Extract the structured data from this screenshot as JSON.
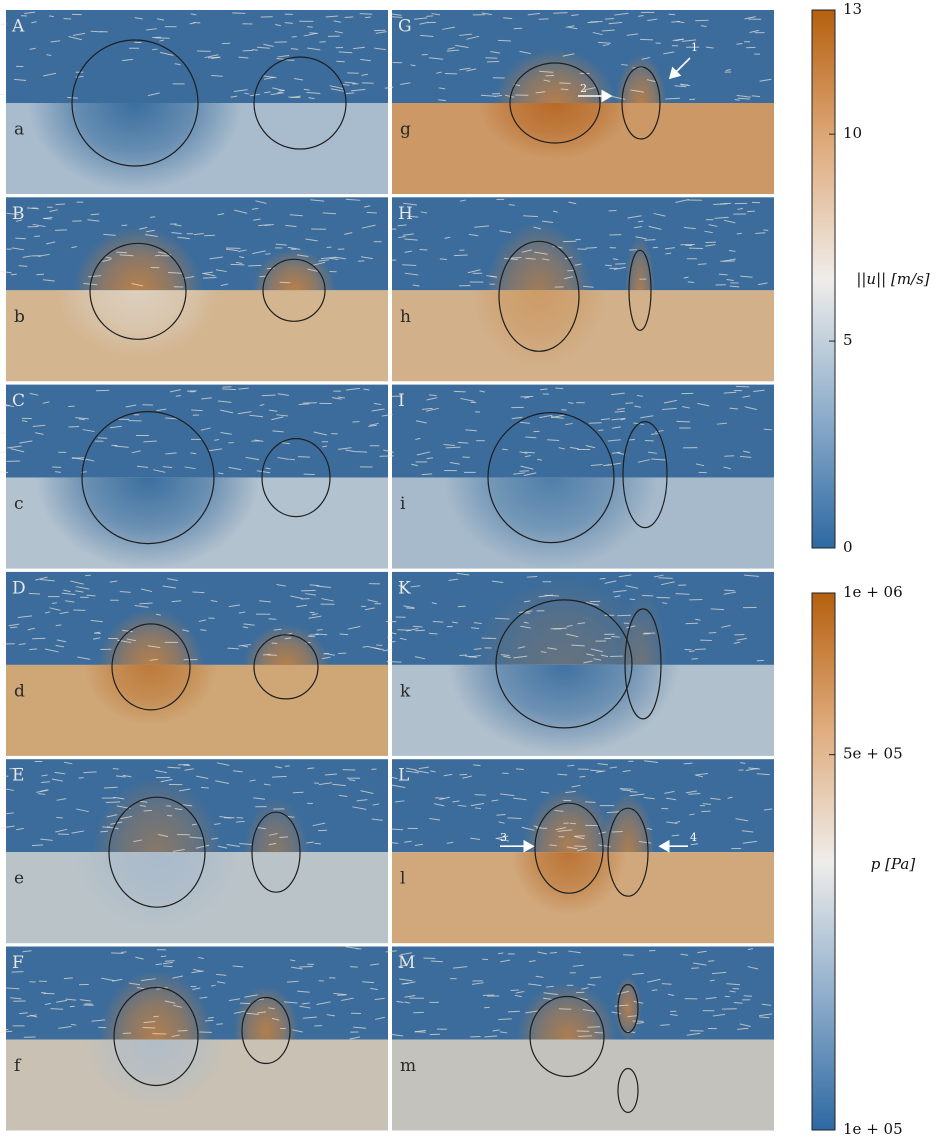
{
  "panels": [
    {
      "upper_label": "A",
      "lower_label": "a"
    },
    {
      "upper_label": "B",
      "lower_label": "b"
    },
    {
      "upper_label": "C",
      "lower_label": "c"
    },
    {
      "upper_label": "D",
      "lower_label": "d"
    },
    {
      "upper_label": "E",
      "lower_label": "e"
    },
    {
      "upper_label": "F",
      "lower_label": "f"
    },
    {
      "upper_label": "G",
      "lower_label": "g"
    },
    {
      "upper_label": "H",
      "lower_label": "h"
    },
    {
      "upper_label": "I",
      "lower_label": "i"
    },
    {
      "upper_label": "K",
      "lower_label": "k"
    },
    {
      "upper_label": "L",
      "lower_label": "l"
    },
    {
      "upper_label": "M",
      "lower_label": "m"
    }
  ],
  "annotations": [
    {
      "panel": "G",
      "label": "1"
    },
    {
      "panel": "G",
      "label": "2"
    },
    {
      "panel": "L",
      "label": "3"
    },
    {
      "panel": "L",
      "label": "4"
    }
  ],
  "colorbars": [
    {
      "title": "||u|| [m/s]",
      "range": [
        0,
        13
      ],
      "ticks": [
        0,
        5,
        10,
        13
      ]
    },
    {
      "title": "p [Pa]",
      "range": [
        100000,
        1000000
      ],
      "log": true,
      "ticks": [
        {
          "value": 100000,
          "label": "1e + 05"
        },
        {
          "value": 500000,
          "label": "5e + 05"
        },
        {
          "value": 1000000,
          "label": "1e + 06"
        }
      ]
    }
  ]
}
